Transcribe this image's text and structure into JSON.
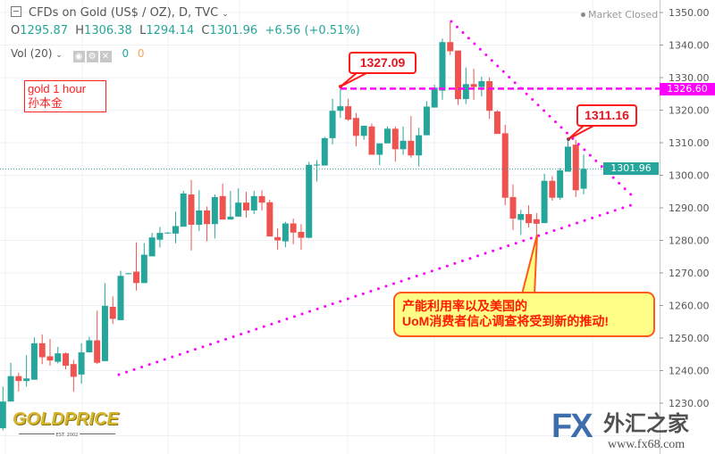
{
  "header": {
    "title": "CFDs on Gold (US$ / OZ), D, TVC",
    "ohlc": {
      "o_label": "O",
      "o": "1295.87",
      "h_label": "H",
      "h": "1306.38",
      "l_label": "L",
      "l": "1294.14",
      "c_label": "C",
      "c": "1301.96",
      "change": "+6.56 (+0.51%)"
    },
    "volume": {
      "label": "Vol (20)",
      "value1": "0",
      "value2": "0"
    },
    "market_status": "Market Closed"
  },
  "note": {
    "line1": "gold 1 hour",
    "line2": "孙本金"
  },
  "callouts": {
    "high1": "1327.09",
    "high2": "1311.16",
    "comment_line1": "产能利用率以及美国的",
    "comment_line2": "UoM消费者信心调查将受到新的推动!"
  },
  "price_tags": {
    "resistance": "1326.60",
    "last": "1301.96"
  },
  "logos": {
    "goldprice": "GOLDPRICE",
    "goldprice_est": "EST. 2002",
    "fx": "FX",
    "fx_cn": "外汇之家",
    "fx_url": "www.fx68.com"
  },
  "colors": {
    "up": "#26a69a",
    "down": "#ef5350",
    "annotation": "#ff00ff",
    "callout": "#ff1a1a",
    "note_bg": "#ffff88"
  },
  "chart_data": {
    "type": "candlestick",
    "title": "CFDs on Gold (US$ / OZ), D, TVC",
    "ylim": [
      1218,
      1352
    ],
    "y_ticks": [
      1230,
      1240,
      1250,
      1260,
      1270,
      1280,
      1290,
      1300,
      1310,
      1320,
      1330,
      1340,
      1350
    ],
    "y_tick_labels": [
      "1230.00",
      "1240.00",
      "1250.00",
      "1260.00",
      "1270.00",
      "1280.00",
      "1290.00",
      "1300.00",
      "1310.00",
      "1320.00",
      "1330.00",
      "1340.00",
      "1350.00"
    ],
    "grid": true,
    "horizontal_line": 1326.6,
    "last_price": 1301.96,
    "ohlc": [
      [
        1222.3,
        1235.1,
        1221.6,
        1230.5
      ],
      [
        1230.5,
        1242.4,
        1230.5,
        1238.3
      ],
      [
        1238.3,
        1239.4,
        1233.6,
        1236.8
      ],
      [
        1236.8,
        1244.7,
        1235.1,
        1237.6
      ],
      [
        1237.2,
        1250.2,
        1237.2,
        1248.4
      ],
      [
        1248.4,
        1251.1,
        1242.0,
        1244.1
      ],
      [
        1244.4,
        1249.7,
        1241.5,
        1243.1
      ],
      [
        1242.7,
        1247.3,
        1242.2,
        1245.3
      ],
      [
        1245.3,
        1245.6,
        1240.4,
        1241.5
      ],
      [
        1242.0,
        1243.3,
        1233.5,
        1238.1
      ],
      [
        1238.8,
        1248.4,
        1236.0,
        1245.6
      ],
      [
        1245.6,
        1250.4,
        1245.6,
        1249.3
      ],
      [
        1249.3,
        1258.4,
        1242.0,
        1242.4
      ],
      [
        1242.9,
        1266.9,
        1242.9,
        1259.9
      ],
      [
        1259.6,
        1262.8,
        1254.3,
        1255.9
      ],
      [
        1255.5,
        1270.7,
        1255.5,
        1269.1
      ],
      [
        1269.7,
        1270.0,
        1269.6,
        1269.9
      ],
      [
        1270.4,
        1279.4,
        1264.6,
        1266.9
      ],
      [
        1266.9,
        1279.1,
        1266.9,
        1275.6
      ],
      [
        1275.1,
        1282.3,
        1275.1,
        1280.9
      ],
      [
        1280.2,
        1284.1,
        1277.8,
        1282.3
      ],
      [
        1282.2,
        1282.5,
        1282.0,
        1282.4
      ],
      [
        1282.1,
        1288.8,
        1279.1,
        1284.4
      ],
      [
        1284.2,
        1295.2,
        1284.2,
        1294.4
      ],
      [
        1294.1,
        1298.6,
        1276.9,
        1284.8
      ],
      [
        1284.8,
        1295.4,
        1282.9,
        1289.2
      ],
      [
        1289.2,
        1290.4,
        1279.7,
        1285.0
      ],
      [
        1285.0,
        1294.1,
        1280.6,
        1293.3
      ],
      [
        1293.6,
        1297.4,
        1286.4,
        1286.4
      ],
      [
        1286.4,
        1295.2,
        1286.4,
        1287.3
      ],
      [
        1287.3,
        1296.0,
        1287.3,
        1291.6
      ],
      [
        1291.6,
        1294.9,
        1287.0,
        1289.2
      ],
      [
        1289.2,
        1295.2,
        1288.1,
        1293.6
      ],
      [
        1293.6,
        1295.4,
        1289.2,
        1291.6
      ],
      [
        1291.7,
        1292.5,
        1281.2,
        1281.2
      ],
      [
        1281.0,
        1283.7,
        1277.1,
        1280.0
      ],
      [
        1279.7,
        1285.7,
        1277.9,
        1285.2
      ],
      [
        1285.2,
        1286.7,
        1278.8,
        1282.4
      ],
      [
        1282.6,
        1285.0,
        1277.1,
        1280.8
      ],
      [
        1280.8,
        1304.1,
        1280.6,
        1303.2
      ],
      [
        1303.0,
        1304.7,
        1298.1,
        1303.3
      ],
      [
        1303.0,
        1311.8,
        1303.0,
        1311.4
      ],
      [
        1311.4,
        1323.5,
        1309.5,
        1319.8
      ],
      [
        1319.8,
        1327.1,
        1317.6,
        1321.2
      ],
      [
        1321.2,
        1323.5,
        1316.7,
        1317.1
      ],
      [
        1317.6,
        1319.1,
        1308.9,
        1312.1
      ],
      [
        1312.1,
        1315.2,
        1310.9,
        1315.2
      ],
      [
        1315.0,
        1315.9,
        1306.3,
        1306.3
      ],
      [
        1306.3,
        1309.8,
        1303.1,
        1309.8
      ],
      [
        1309.8,
        1315.0,
        1309.8,
        1314.3
      ],
      [
        1314.3,
        1315.0,
        1304.2,
        1308.0
      ],
      [
        1308.0,
        1315.0,
        1306.3,
        1310.6
      ],
      [
        1310.6,
        1318.2,
        1305.4,
        1306.1
      ],
      [
        1306.1,
        1314.6,
        1302.7,
        1312.3
      ],
      [
        1312.3,
        1322.8,
        1312.3,
        1321.1
      ],
      [
        1320.8,
        1327.8,
        1320.8,
        1326.9
      ],
      [
        1326.0,
        1342.0,
        1323.2,
        1340.9
      ],
      [
        1340.9,
        1347.3,
        1336.9,
        1338.1
      ],
      [
        1338.3,
        1338.3,
        1321.6,
        1323.4
      ],
      [
        1323.4,
        1333.1,
        1321.9,
        1328.0
      ],
      [
        1328.0,
        1332.7,
        1323.2,
        1327.1
      ],
      [
        1327.1,
        1330.3,
        1324.2,
        1328.9
      ],
      [
        1328.9,
        1330.1,
        1317.3,
        1319.8
      ],
      [
        1319.6,
        1320.0,
        1312.7,
        1312.7
      ],
      [
        1312.9,
        1315.5,
        1290.8,
        1293.1
      ],
      [
        1293.3,
        1297.2,
        1283.2,
        1286.7
      ],
      [
        1286.3,
        1289.4,
        1281.7,
        1288.1
      ],
      [
        1288.1,
        1290.8,
        1284.0,
        1285.3
      ],
      [
        1286.5,
        1288.4,
        1281.0,
        1285.1
      ],
      [
        1285.3,
        1300.5,
        1285.3,
        1298.3
      ],
      [
        1298.3,
        1299.7,
        1292.2,
        1293.1
      ],
      [
        1293.1,
        1302.2,
        1292.4,
        1301.5
      ],
      [
        1301.1,
        1311.2,
        1301.1,
        1308.8
      ],
      [
        1309.4,
        1310.9,
        1293.3,
        1295.4
      ],
      [
        1295.87,
        1306.38,
        1294.14,
        1301.96
      ]
    ]
  }
}
